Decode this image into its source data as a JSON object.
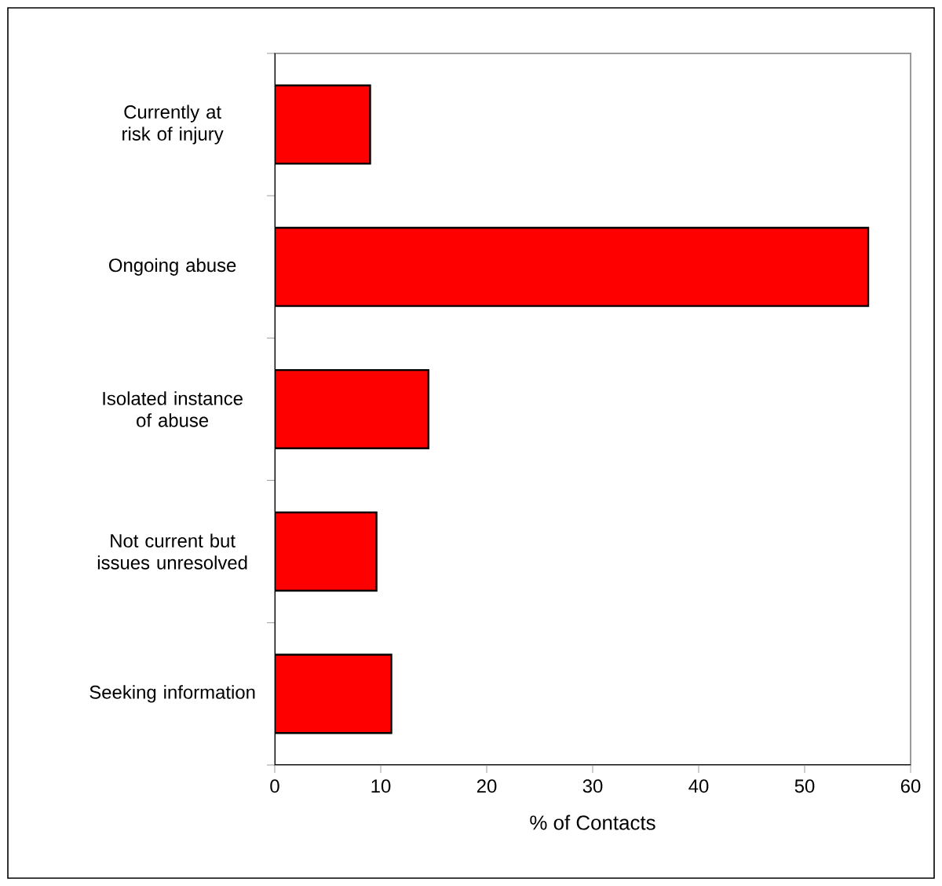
{
  "chart_data": {
    "type": "bar",
    "orientation": "horizontal",
    "xlabel": "% of Contacts",
    "categories": [
      "Currently at risk of injury",
      "Ongoing abuse",
      "Isolated instance of abuse",
      "Not current but issues unresolved",
      "Seeking information"
    ],
    "values": [
      9.0,
      56.0,
      14.5,
      9.6,
      11.0
    ],
    "color": "#ff0000",
    "xlim": [
      0,
      60
    ],
    "xticks": [
      0,
      10,
      20,
      30,
      40,
      50,
      60
    ]
  }
}
